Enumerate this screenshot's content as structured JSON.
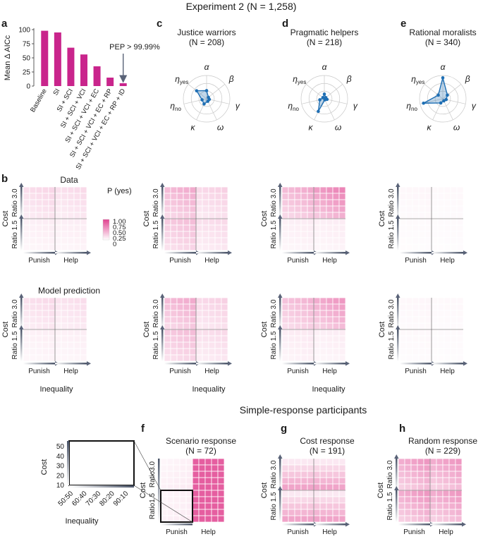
{
  "figure_title": "Experiment 2 (N = 1,258)",
  "simple_title": "Simple-response participants",
  "panel_labels": {
    "a": "a",
    "b": "b",
    "c": "c",
    "d": "d",
    "e": "e",
    "f": "f",
    "g": "g",
    "h": "h"
  },
  "row_labels": {
    "data": "Data",
    "model": "Model prediction"
  },
  "axis_text": {
    "cost": "Cost",
    "ratio30": "Ratio 3.0",
    "ratio15": "Ratio 1.5",
    "punish": "Punish",
    "help": "Help",
    "inequality": "Inequality",
    "ratio30_tight": "Ratio3.0",
    "ratio15_tight": "Ratio1.5"
  },
  "colorbar": {
    "title": "P (yes)",
    "ticks": [
      "1.00",
      "0.75",
      "0.50",
      "0.25",
      "0"
    ],
    "low_color": "#ffffff",
    "high_color": "#e0418f"
  },
  "chart_data": [
    {
      "type": "bar",
      "panel": "a",
      "ylabel": "Mean Δ AICc",
      "ylim": [
        0,
        100
      ],
      "yticks": [
        0,
        25,
        50,
        75,
        100
      ],
      "categories": [
        "Baseline",
        "SI",
        "SI + SCI",
        "SI + SCI + VCI",
        "SI + SCI + VCI + EC",
        "SI + SCI + VCI + EC + RP",
        "SI + SCI + VCI + EC + RP + ID"
      ],
      "values": [
        98,
        95,
        68,
        56,
        35,
        15,
        5
      ],
      "color": "#c9258c",
      "annotation": "PEP > 99.99%"
    },
    {
      "type": "radar",
      "axes": [
        "α",
        "β",
        "γ",
        "ω",
        "κ",
        "η_no",
        "η_yes"
      ],
      "axis_labels": [
        {
          "main": "α",
          "sub": ""
        },
        {
          "main": "β",
          "sub": ""
        },
        {
          "main": "γ",
          "sub": ""
        },
        {
          "main": "ω",
          "sub": ""
        },
        {
          "main": "κ",
          "sub": ""
        },
        {
          "main": "η",
          "sub": "no"
        },
        {
          "main": "η",
          "sub": "yes"
        }
      ],
      "series": [
        {
          "panel": "c",
          "name": "Justice warriors",
          "n_label": "(N = 208)",
          "values": [
            0.35,
            0.1,
            0.12,
            0.12,
            0.25,
            0.2,
            0.55
          ]
        },
        {
          "panel": "d",
          "name": "Pragmatic helpers",
          "n_label": "(N = 218)",
          "values": [
            0.2,
            0.08,
            0.12,
            0.05,
            0.6,
            0.2,
            0.08
          ]
        },
        {
          "panel": "e",
          "name": "Rational moralists",
          "n_label": "(N = 340)",
          "values": [
            0.9,
            0.25,
            0.15,
            0.1,
            0.2,
            0.85,
            0.25
          ]
        }
      ],
      "color": "#1f6fb4"
    },
    {
      "type": "heatmap",
      "description": "P(yes) grids: rows = cost levels (top = high), cols = inequality levels; two cost ratios (3.0 top, 1.5 bottom) × two actions (Punish left, Help right)",
      "panels": {
        "b_data": {
          "r30p": 0.22,
          "r30h": 0.2,
          "r15p": 0.1,
          "r15h": 0.1
        },
        "b_model": {
          "r30p": 0.2,
          "r30h": 0.18,
          "r15p": 0.09,
          "r15h": 0.09
        },
        "c_data": {
          "r30p": 0.45,
          "r30h": 0.25,
          "r15p": 0.35,
          "r15h": 0.2
        },
        "c_model": {
          "r30p": 0.45,
          "r30h": 0.25,
          "r15p": 0.35,
          "r15h": 0.2
        },
        "d_data": {
          "r30p": 0.45,
          "r30h": 0.65,
          "r15p": 0.1,
          "r15h": 0.1
        },
        "d_model": {
          "r30p": 0.4,
          "r30h": 0.55,
          "r15p": 0.12,
          "r15h": 0.1
        },
        "e_data": {
          "r30p": 0.05,
          "r30h": 0.04,
          "r15p": 0.03,
          "r15h": 0.03
        },
        "e_model": {
          "r30p": 0.05,
          "r30h": 0.04,
          "r15p": 0.04,
          "r15h": 0.03
        },
        "g": {
          "r30p": 0.3,
          "r30h": 0.3,
          "r15p": 0.3,
          "r15h": 0.3
        },
        "h": {
          "r30p": 0.55,
          "r30h": 0.55,
          "r15p": 0.55,
          "r15h": 0.55
        }
      }
    },
    {
      "type": "heatmap",
      "panel": "f",
      "name": "Scenario response",
      "n_label": "(N = 72)",
      "values": {
        "punish": 0.08,
        "help": 0.85
      }
    },
    {
      "type": "schematic",
      "panel": "f-left",
      "ylabel": "Cost",
      "xlabel": "Inequality",
      "yticks": [
        "10",
        "20",
        "30",
        "40",
        "50"
      ],
      "xticks": [
        "50:50",
        "60:40",
        "70:30",
        "80:20",
        "90:10"
      ]
    }
  ],
  "panel_g": {
    "name": "Cost response",
    "n_label": "(N = 191)"
  },
  "panel_h": {
    "name": "Random response",
    "n_label": "(N = 229)"
  }
}
